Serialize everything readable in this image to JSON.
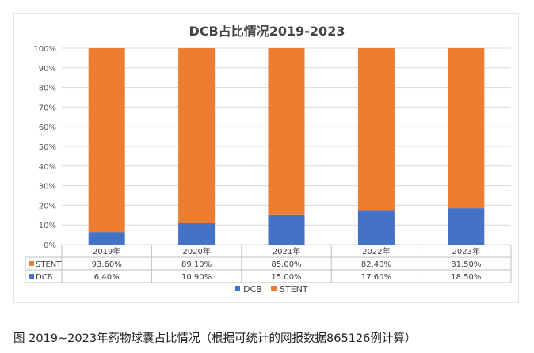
{
  "chart_data": {
    "type": "bar",
    "stacked": true,
    "percent": true,
    "title": "DCB占比情况2019-2023",
    "categories": [
      "2019年",
      "2020年",
      "2021年",
      "2022年",
      "2023年"
    ],
    "series": [
      {
        "name": "DCB",
        "color": "#4472C4",
        "values": [
          6.4,
          10.9,
          15.0,
          17.6,
          18.5
        ],
        "labels": [
          "6.40%",
          "10.90%",
          "15.00%",
          "17.60%",
          "18.50%"
        ]
      },
      {
        "name": "STENT",
        "color": "#ED7D31",
        "values": [
          93.6,
          89.1,
          85.0,
          82.4,
          81.5
        ],
        "labels": [
          "93.60%",
          "89.10%",
          "85.00%",
          "82.40%",
          "81.50%"
        ]
      }
    ],
    "yticks": [
      "0%",
      "10%",
      "20%",
      "30%",
      "40%",
      "50%",
      "60%",
      "70%",
      "80%",
      "90%",
      "100%"
    ],
    "ylim": [
      0,
      100
    ],
    "data_table": true,
    "legend_position": "bottom",
    "grid": true
  },
  "caption": "图 2019~2023年药物球囊占比情况（根据可统计的网报数据865126例计算）"
}
